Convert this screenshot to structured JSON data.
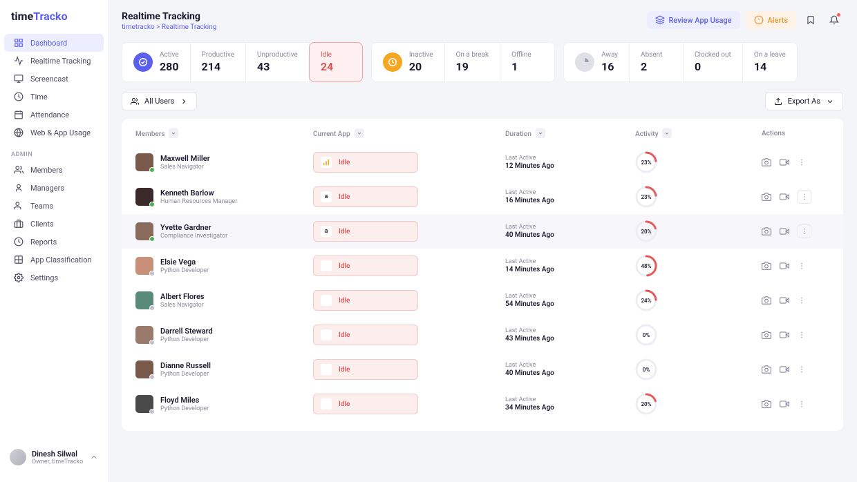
{
  "logo": {
    "part1": "time",
    "part2": "Tracko"
  },
  "nav": {
    "items": [
      {
        "label": "Dashboard",
        "icon": "dashboard",
        "active": true
      },
      {
        "label": "Realtime Tracking",
        "icon": "pulse"
      },
      {
        "label": "Screencast",
        "icon": "monitor"
      },
      {
        "label": "Time",
        "icon": "clock"
      },
      {
        "label": "Attendance",
        "icon": "calendar"
      },
      {
        "label": "Web & App Usage",
        "icon": "globe"
      }
    ],
    "adminLabel": "ADMIN",
    "adminItems": [
      {
        "label": "Members",
        "icon": "users"
      },
      {
        "label": "Managers",
        "icon": "badge"
      },
      {
        "label": "Teams",
        "icon": "team"
      },
      {
        "label": "Clients",
        "icon": "briefcase"
      },
      {
        "label": "Reports",
        "icon": "report"
      },
      {
        "label": "App Classification",
        "icon": "grid"
      },
      {
        "label": "Settings",
        "icon": "gear"
      }
    ]
  },
  "user": {
    "name": "Dinesh Silwal",
    "role": "Owner, timeTracko"
  },
  "page": {
    "title": "Realtime Tracking",
    "crumb": "timetracko > Realtime Tracking"
  },
  "headerBtns": {
    "review": "Review App Usage",
    "alerts": "Alerts"
  },
  "stats": {
    "g1": [
      {
        "label": "Active",
        "value": "280",
        "icon": "purple"
      },
      {
        "label": "Productive",
        "value": "214"
      },
      {
        "label": "Unproductive",
        "value": "43"
      },
      {
        "label": "Idle",
        "value": "24",
        "selected": true
      }
    ],
    "g2": [
      {
        "label": "Inactive",
        "value": "20",
        "icon": "orange"
      },
      {
        "label": "On a break",
        "value": "19"
      },
      {
        "label": "Offline",
        "value": "1"
      }
    ],
    "g3": [
      {
        "label": "Away",
        "value": "16",
        "icon": "grey"
      },
      {
        "label": "Absent",
        "value": "2"
      },
      {
        "label": "Clocked out",
        "value": "0"
      },
      {
        "label": "On a leave",
        "value": "14"
      }
    ]
  },
  "toolbar": {
    "filter": "All Users",
    "export": "Export As"
  },
  "columns": {
    "members": "Members",
    "app": "Current App",
    "duration": "Duration",
    "activity": "Activity",
    "actions": "Actions"
  },
  "lastActiveLabel": "Last Active",
  "idleLabel": "Idle",
  "ringColors": {
    "track": "#eceef4",
    "fill": "#e85a5a"
  },
  "rows": [
    {
      "name": "Maxwell Miller",
      "role": "Sales Navigator",
      "status": "green",
      "appIcon": "chart",
      "ago": "12 Minutes Ago",
      "pct": 23,
      "avatar": "#7a5a4a"
    },
    {
      "name": "Kenneth Barlow",
      "role": "Human Resources Manager",
      "status": "green",
      "appIcon": "amazon",
      "ago": "16 Minutes Ago",
      "pct": 23,
      "moreBox": true,
      "avatar": "#3a2a2a"
    },
    {
      "name": "Yvette Gardner",
      "role": "Compliance Investigator",
      "status": "green",
      "appIcon": "amazon",
      "ago": "40 Minutes Ago",
      "pct": 20,
      "hover": true,
      "moreBox": true,
      "avatar": "#8a6a5a"
    },
    {
      "name": "Elsie Vega",
      "role": "Python Developer",
      "status": "grey",
      "appIcon": "blank",
      "ago": "14 Minutes Ago",
      "pct": 48,
      "avatar": "#c89078"
    },
    {
      "name": "Albert Flores",
      "role": "Sales Navigator",
      "status": "grey",
      "appIcon": "blank",
      "ago": "54 Minutes Ago",
      "pct": 24,
      "avatar": "#5a8a7a"
    },
    {
      "name": "Darrell Steward",
      "role": "Python Developer",
      "status": "grey",
      "appIcon": "blank",
      "ago": "43 Minutes Ago",
      "pct": 0,
      "avatar": "#9a7a6a"
    },
    {
      "name": "Dianne Russell",
      "role": "Python Developer",
      "status": "grey",
      "appIcon": "blank",
      "ago": "40 Minutes Ago",
      "pct": 0,
      "avatar": "#7a5a4a"
    },
    {
      "name": "Floyd Miles",
      "role": "Python Developer",
      "status": "grey",
      "appIcon": "blank",
      "ago": "34 Minutes Ago",
      "pct": 20,
      "avatar": "#4a4a4a"
    }
  ]
}
